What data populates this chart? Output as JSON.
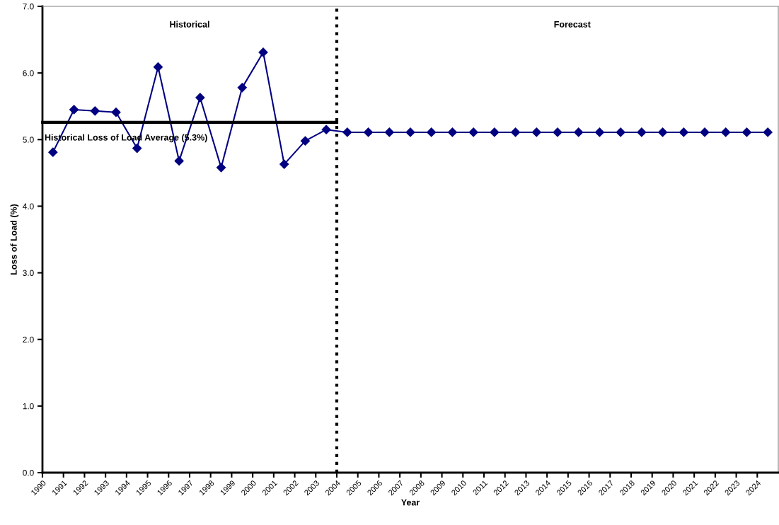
{
  "chart_data": {
    "type": "line",
    "xlabel": "Year",
    "ylabel": "Loss of Load (%)",
    "xlim": [
      1990,
      2025
    ],
    "ylim": [
      0,
      7
    ],
    "yticks": [
      {
        "value": 0,
        "label": "0.0"
      },
      {
        "value": 1,
        "label": "1.0"
      },
      {
        "value": 2,
        "label": "2.0"
      },
      {
        "value": 3,
        "label": "3.0"
      },
      {
        "value": 4,
        "label": "4.0"
      },
      {
        "value": 5,
        "label": "5.0"
      },
      {
        "value": 6,
        "label": "6.0"
      },
      {
        "value": 7,
        "label": "7.0"
      }
    ],
    "xticks": [
      1990,
      1991,
      1992,
      1993,
      1994,
      1995,
      1996,
      1997,
      1998,
      1999,
      2000,
      2001,
      2002,
      2003,
      2004,
      2005,
      2006,
      2007,
      2008,
      2009,
      2010,
      2011,
      2012,
      2013,
      2014,
      2015,
      2016,
      2017,
      2018,
      2019,
      2020,
      2021,
      2022,
      2023,
      2024
    ],
    "grid": false,
    "legend": false,
    "series": [
      {
        "color": "#000080",
        "marker": "diamond",
        "line_style": "solid",
        "x": [
          1990.5,
          1991.5,
          1992.5,
          1993.5,
          1994.5,
          1995.5,
          1996.5,
          1997.5,
          1998.5,
          1999.5,
          2000.5,
          2001.5,
          2002.5,
          2003.5,
          2004.5,
          2005.5,
          2006.5,
          2007.5,
          2008.5,
          2009.5,
          2010.5,
          2011.5,
          2012.5,
          2013.5,
          2014.5,
          2015.5,
          2016.5,
          2017.5,
          2018.5,
          2019.5,
          2020.5,
          2021.5,
          2022.5,
          2023.5,
          2024.5
        ],
        "values": [
          4.81,
          5.45,
          5.43,
          5.41,
          4.87,
          6.09,
          4.68,
          5.63,
          4.58,
          5.78,
          6.31,
          4.63,
          4.98,
          5.15,
          5.11,
          5.11,
          5.11,
          5.11,
          5.11,
          5.11,
          5.11,
          5.11,
          5.11,
          5.11,
          5.11,
          5.11,
          5.11,
          5.11,
          5.11,
          5.11,
          5.11,
          5.11,
          5.11,
          5.11,
          5.11
        ]
      },
      {
        "color": "#000000",
        "marker": "none",
        "line_style": "solid",
        "x": [
          1990,
          2004
        ],
        "values": [
          5.26,
          5.26
        ]
      }
    ],
    "ref_lines": [
      {
        "axis": "x",
        "value": 2004,
        "color": "#000000",
        "line_style": "dotted"
      }
    ],
    "annotations": [
      "Historical",
      "Forecast",
      {
        "text": "Historical Loss of Load Average (5.3%)",
        "x": 1990.1,
        "y": 5.26
      }
    ]
  }
}
